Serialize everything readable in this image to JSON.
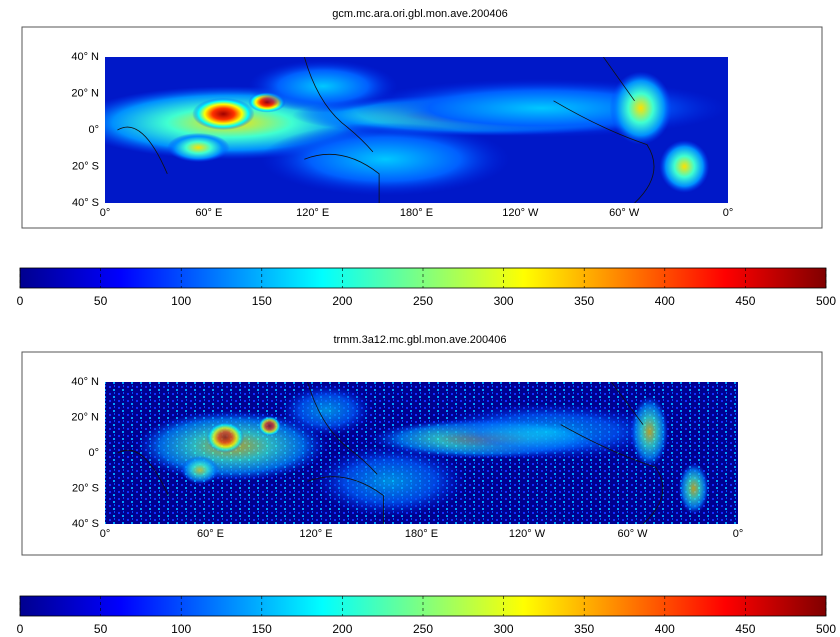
{
  "panels": [
    {
      "title": "gcm.mc.ara.ori.gbl.mon.ave.200406",
      "map": {
        "lat_labels": [
          "40° N",
          "20° N",
          "0°",
          "20° S",
          "40° S"
        ],
        "lon_labels": [
          "0°",
          "60° E",
          "120° E",
          "180° E",
          "120° W",
          "60° W",
          "0°"
        ]
      },
      "colorbar": {
        "lim": [
          0,
          500
        ],
        "ticks": [
          0,
          50,
          100,
          150,
          200,
          250,
          300,
          350,
          400,
          450,
          500
        ]
      }
    },
    {
      "title": "trmm.3a12.mc.gbl.mon.ave.200406",
      "map": {
        "lat_labels": [
          "40° N",
          "20° N",
          "0°",
          "20° S",
          "40° S"
        ],
        "lon_labels": [
          "0°",
          "60° E",
          "120° E",
          "180° E",
          "120° W",
          "60° W",
          "0°"
        ]
      },
      "colorbar": {
        "lim": [
          0,
          500
        ],
        "ticks": [
          0,
          50,
          100,
          150,
          200,
          250,
          300,
          350,
          400,
          450,
          500
        ]
      }
    }
  ]
}
